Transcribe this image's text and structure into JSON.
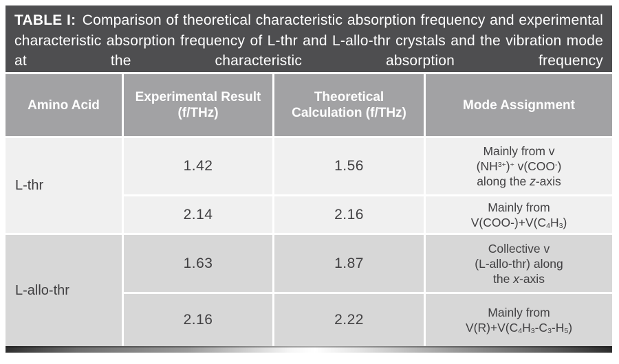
{
  "caption": {
    "label": "TABLE I:",
    "text": "Comparison of theoretical characteristic absorption frequency and experimental characteristic absorption frequency of L-thr and L-allo-thr crystals and the vibration mode at the characteristic absorption frequency"
  },
  "columns": [
    "Amino Acid",
    "Experimental Result (f/THz)",
    "Theoretical Calculation (f/THz)",
    "Mode Assignment"
  ],
  "groups": [
    {
      "amino_acid": "L-thr",
      "rows": [
        {
          "experimental": "1.42",
          "theoretical": "1.56",
          "mode": [
            [
              {
                "t": "Mainly from v"
              }
            ],
            [
              {
                "t": "(NH"
              },
              {
                "t": "3+",
                "s": "sup"
              },
              {
                "t": ")"
              },
              {
                "t": "+",
                "s": "sup"
              },
              {
                "t": " v(COO"
              },
              {
                "t": "-",
                "s": "sup"
              },
              {
                "t": ")"
              }
            ],
            [
              {
                "t": "along the "
              },
              {
                "t": "z",
                "s": "i"
              },
              {
                "t": "-axis"
              }
            ]
          ]
        },
        {
          "experimental": "2.14",
          "theoretical": "2.16",
          "mode": [
            [
              {
                "t": "Mainly from"
              }
            ],
            [
              {
                "t": "V(COO-)+V(C"
              },
              {
                "t": "4",
                "s": "sub"
              },
              {
                "t": "H"
              },
              {
                "t": "3",
                "s": "sub"
              },
              {
                "t": ")"
              }
            ]
          ]
        }
      ]
    },
    {
      "amino_acid": "L-allo-thr",
      "rows": [
        {
          "experimental": "1.63",
          "theoretical": "1.87",
          "mode": [
            [
              {
                "t": "Collective v"
              }
            ],
            [
              {
                "t": "(L-allo-thr) along"
              }
            ],
            [
              {
                "t": "the "
              },
              {
                "t": "x",
                "s": "i"
              },
              {
                "t": "-axis"
              }
            ]
          ]
        },
        {
          "experimental": "2.16",
          "theoretical": "2.22",
          "mode": [
            [
              {
                "t": "Mainly from"
              }
            ],
            [
              {
                "t": "V(R)+V(C"
              },
              {
                "t": "4",
                "s": "sub"
              },
              {
                "t": "H"
              },
              {
                "t": "3",
                "s": "sub"
              },
              {
                "t": "-C"
              },
              {
                "t": "3",
                "s": "sub"
              },
              {
                "t": "-H"
              },
              {
                "t": "5",
                "s": "sub"
              },
              {
                "t": ")"
              }
            ]
          ]
        }
      ]
    }
  ],
  "colors": {
    "caption_bg": "#4e4e50",
    "header_bg": "#a2a2a4",
    "row_light_bg": "#f0f0f0",
    "row_dark_bg": "#d7d7d7",
    "text_dark": "#414042",
    "text_white": "#ffffff"
  }
}
